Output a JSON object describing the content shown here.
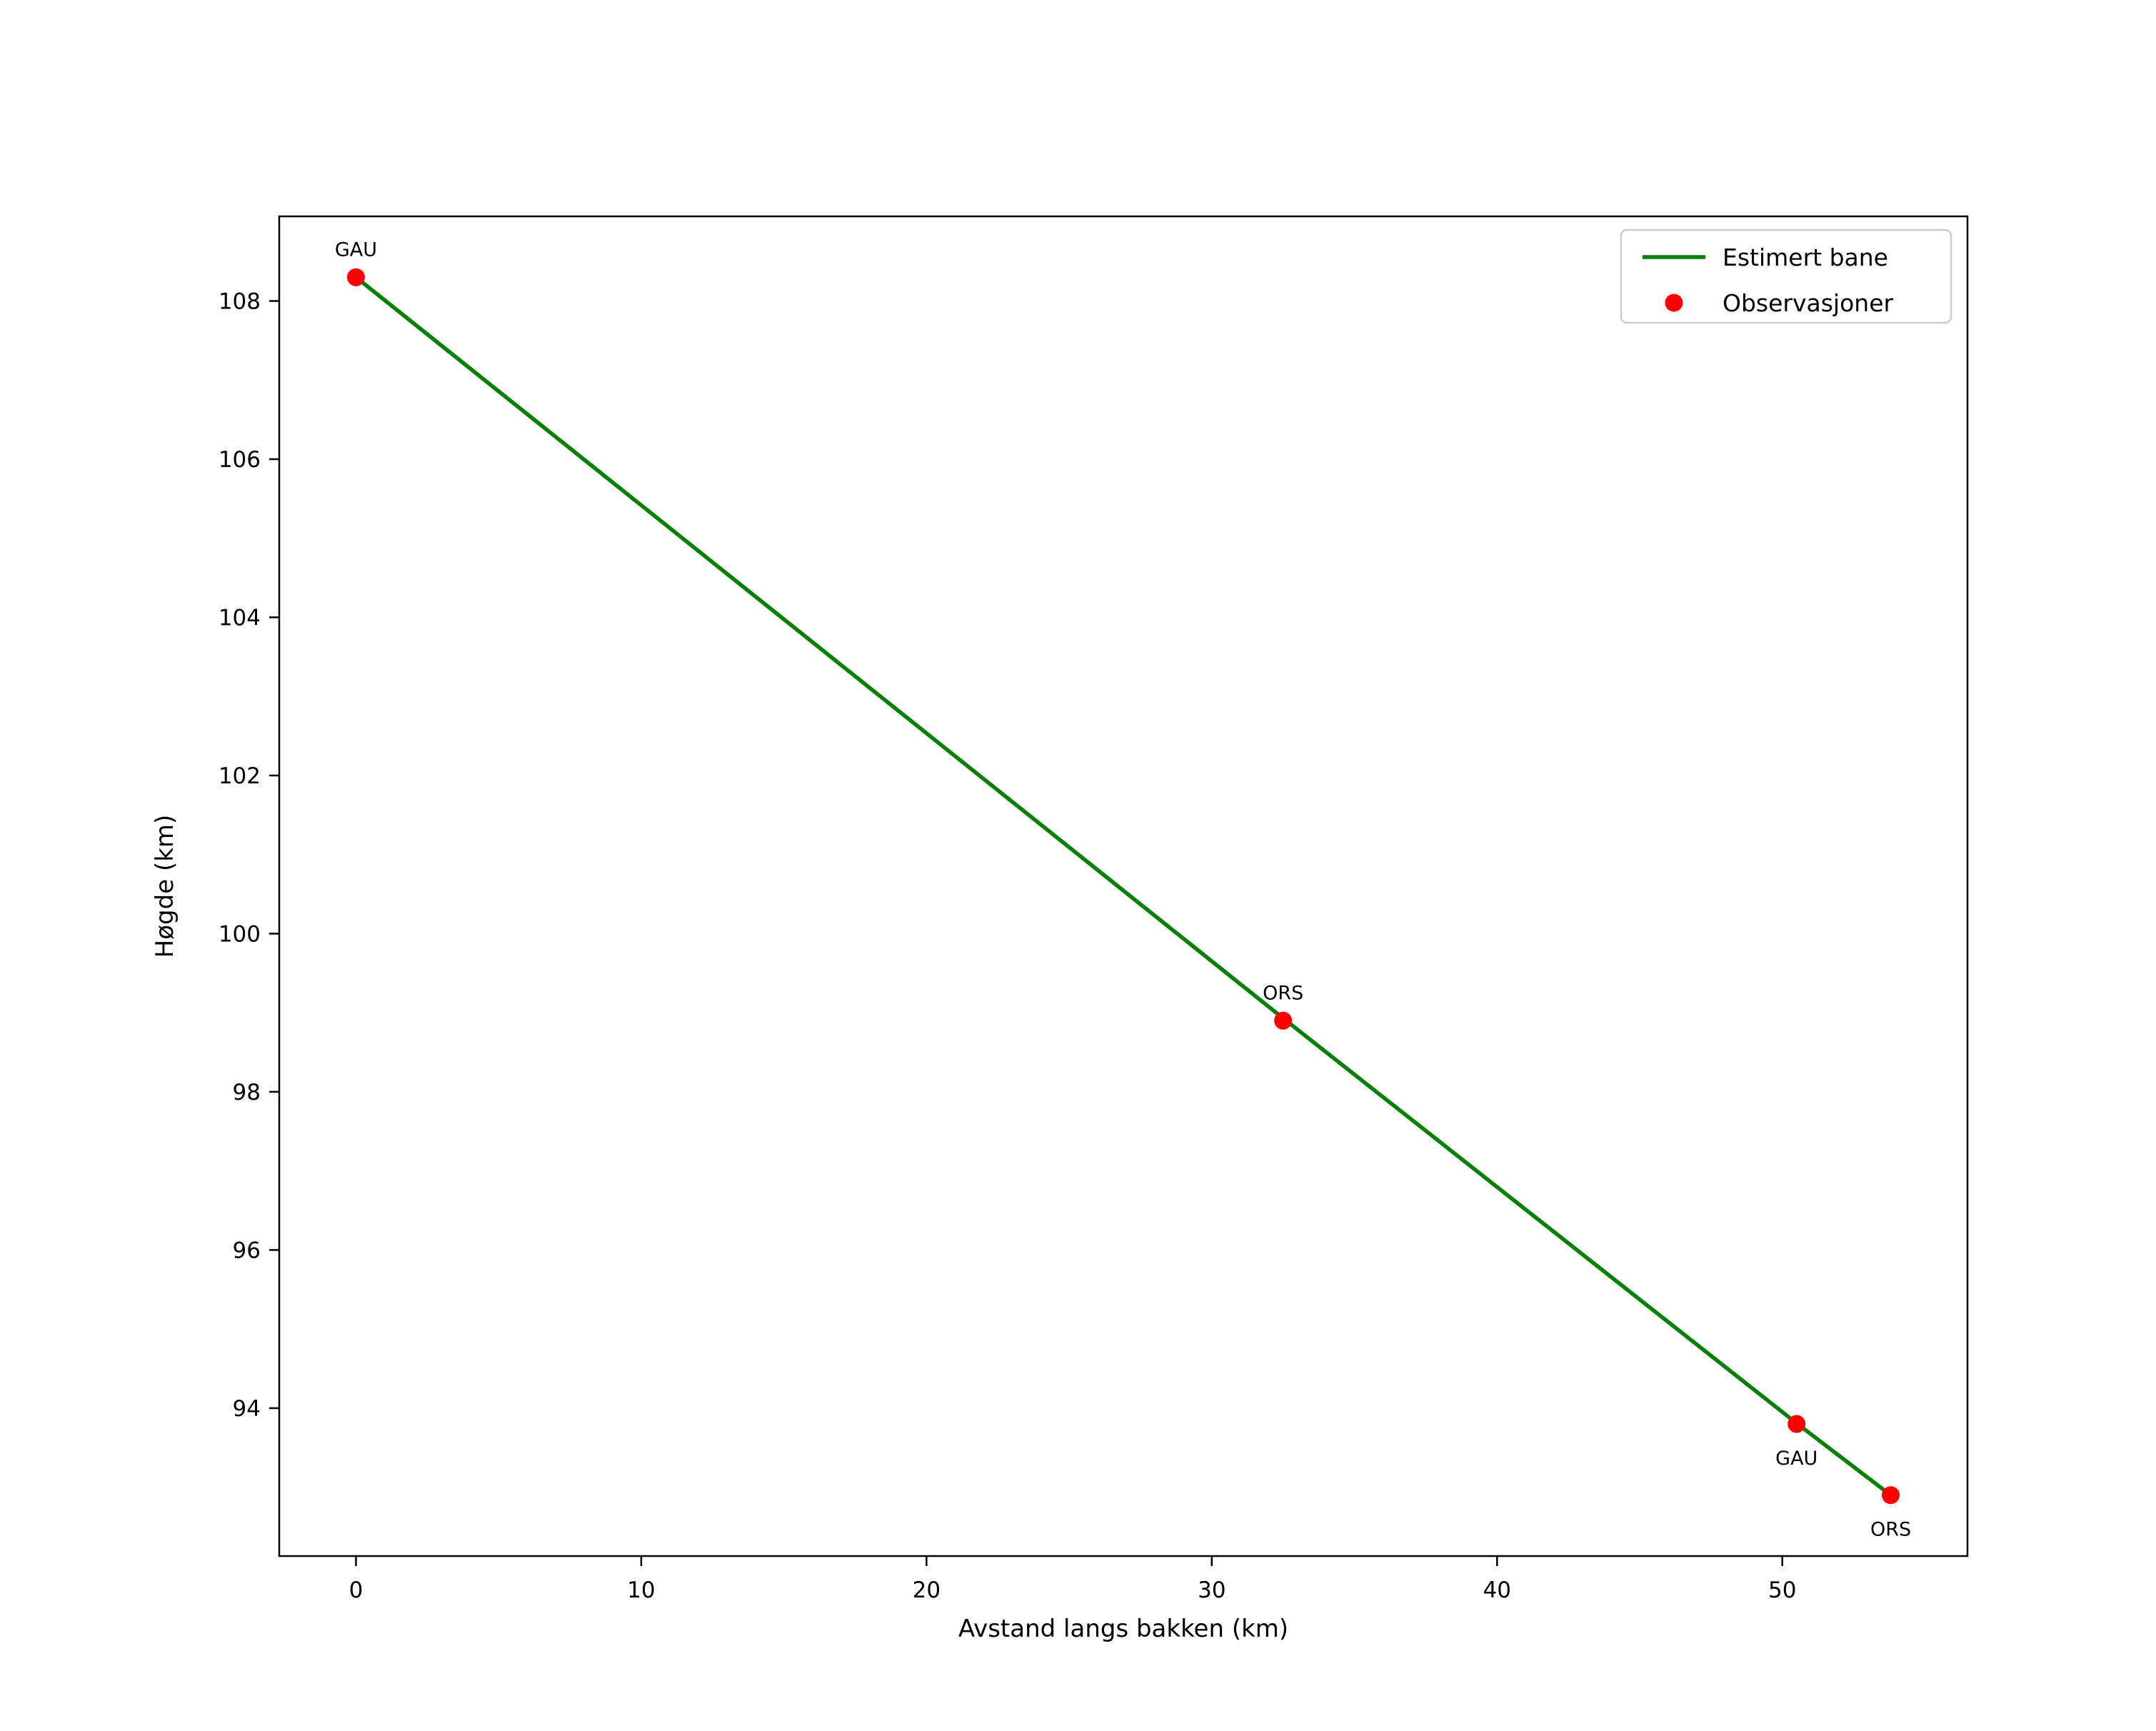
{
  "chart_data": {
    "type": "line",
    "title": "",
    "xlabel": "Avstand langs bakken (km)",
    "ylabel": "Høgde (km)",
    "xlim": [
      -2.69,
      56.49
    ],
    "ylim": [
      92.13,
      109.07
    ],
    "xticks": [
      0,
      10,
      20,
      30,
      40,
      50
    ],
    "yticks": [
      94,
      96,
      98,
      100,
      102,
      104,
      106,
      108
    ],
    "grid": false,
    "legend": {
      "position": "upper right",
      "entries": [
        {
          "label": "Estimert bane",
          "type": "line",
          "color": "#008000"
        },
        {
          "label": "Observasjoner",
          "type": "marker",
          "color": "#ff0000"
        }
      ]
    },
    "series": [
      {
        "name": "Estimert bane",
        "type": "line",
        "color": "#008000",
        "points": [
          [
            0,
            108.3
          ],
          [
            32.5,
            98.93
          ],
          [
            50.5,
            93.81
          ],
          [
            53.8,
            92.9
          ]
        ]
      },
      {
        "name": "Observasjoner",
        "type": "scatter",
        "color": "#ff0000",
        "points": [
          {
            "x": 0,
            "y": 108.3,
            "label": "GAU",
            "label_pos": "above"
          },
          {
            "x": 32.5,
            "y": 98.9,
            "label": "ORS",
            "label_pos": "above"
          },
          {
            "x": 50.5,
            "y": 93.8,
            "label": "GAU",
            "label_pos": "below"
          },
          {
            "x": 53.8,
            "y": 92.9,
            "label": "ORS",
            "label_pos": "below"
          }
        ]
      }
    ]
  },
  "colors": {
    "line": "#008000",
    "marker": "#ff0000",
    "axes": "#000000",
    "legend_border": "#cccccc",
    "background": "#ffffff"
  }
}
